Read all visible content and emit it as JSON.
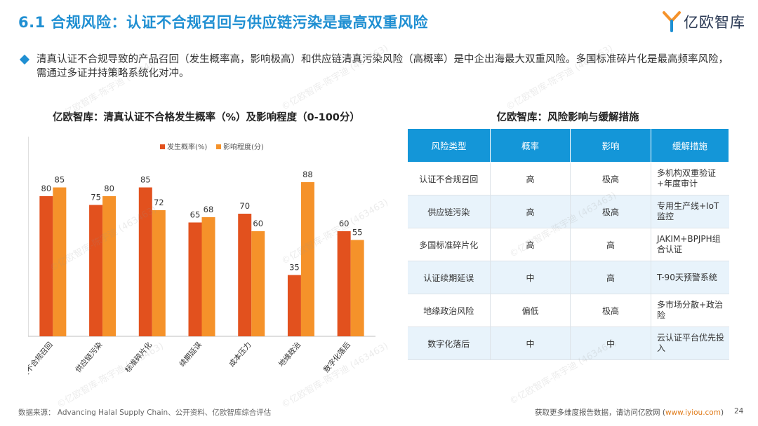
{
  "header": {
    "title": "6.1 合规风险：认证不合规召回与供应链污染是最高双重风险",
    "logo_text": "亿欧智库",
    "accent": "#1f8fd2"
  },
  "summary": {
    "text": "清真认证不合规导致的产品召回（发生概率高，影响极高）和供应链清真污染风险（高概率）是中企出海最大双重风险。多国标准碎片化是最高频率风险，需通过多证并持策略系统化对冲。"
  },
  "chart": {
    "title": "亿欧智库：清真认证不合格发生概率（%）及影响程度（0-100分）"
  },
  "chart_data": {
    "type": "bar",
    "categories": [
      "认证不合规召回",
      "供应链污染",
      "标准碎片化",
      "续期延误",
      "成本压力",
      "地缘政治",
      "数字化落后"
    ],
    "series": [
      {
        "name": "发生概率(%)",
        "values": [
          80,
          75,
          85,
          65,
          70,
          35,
          60
        ],
        "color": "#e2511e"
      },
      {
        "name": "影响程度(分)",
        "values": [
          85,
          80,
          72,
          68,
          60,
          88,
          55
        ],
        "color": "#f5922a"
      }
    ],
    "ylim": [
      0,
      100
    ],
    "legend_position": "top",
    "grid": false
  },
  "table": {
    "title": "亿欧智库：风险影响与缓解措施",
    "headers": [
      "风险类型",
      "概率",
      "影响",
      "缓解措施"
    ],
    "rows": [
      [
        "认证不合规召回",
        "高",
        "极高",
        "多机构双重验证+年度审计"
      ],
      [
        "供应链污染",
        "高",
        "极高",
        "专用生产线+IoT监控"
      ],
      [
        "多国标准碎片化",
        "高",
        "高",
        "JAKIM+BPJPH组合认证"
      ],
      [
        "认证续期延误",
        "中",
        "高",
        "T-90天预警系统"
      ],
      [
        "地缘政治风险",
        "偏低",
        "极高",
        "多市场分散+政治险"
      ],
      [
        "数字化落后",
        "中",
        "中",
        "云认证平台优先投入"
      ]
    ],
    "header_color": "#1496d8",
    "shade_color": "#e8f3fb"
  },
  "footer": {
    "source": "数据来源： Advancing Halal Supply Chain、公开资料、亿欧智库综合评估",
    "more_prefix": "获取更多维度报告数据，请访问亿欧网 (",
    "link": "www.iyiou.com",
    "more_suffix": ")",
    "page": "24"
  },
  "watermark": "©亿欧智库-陈宇迪 (463463)"
}
